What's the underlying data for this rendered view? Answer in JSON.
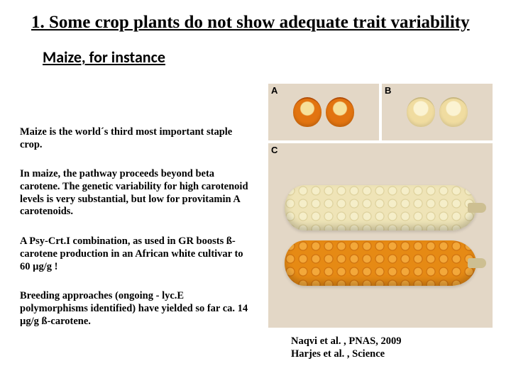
{
  "title": "1. Some crop plants do not show adequate trait variability",
  "subtitle": "Maize, for instance",
  "paragraphs": {
    "p1": "Maize is the world´s third most important staple crop.",
    "p2": "In maize, the pathway proceeds beyond beta carotene. The genetic variability for high carotenoid levels is very substantial, but low for provitamin A carotenoids.",
    "p3": "A Psy-Crt.I combination, as used in GR boosts ß-carotene production in an African white cultivar to 60 µg/g !",
    "p4": "Breeding approaches (ongoing - lyc.E polymorphisms identified) have yielded so far  ca. 14 µg/g ß-carotene."
  },
  "figure": {
    "panels": {
      "A": "A",
      "B": "B",
      "C": "C"
    },
    "kernel_orange_color": "#e27410",
    "kernel_white_color": "#f0dca0",
    "cob_white_color": "#efe4b7",
    "cob_orange_color": "#e68a14",
    "panel_bg": "#e3d7c6"
  },
  "citation": {
    "line1": "Naqvi et al. , PNAS, 2009",
    "line2": "Harjes et al. , Science"
  }
}
